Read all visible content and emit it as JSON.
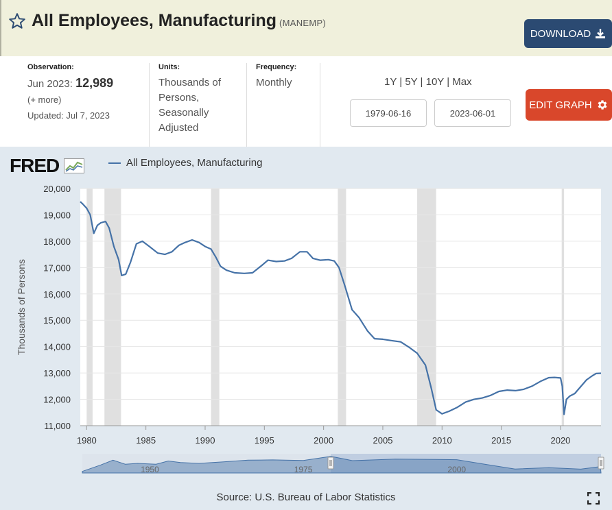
{
  "header": {
    "title": "All Employees, Manufacturing",
    "series_id": "(MANEMP)",
    "download_label": "DOWNLOAD"
  },
  "info": {
    "observation_label": "Observation:",
    "observation_date": "Jun 2023:",
    "observation_value": "12,989",
    "more": "(+ more)",
    "updated": "Updated: Jul 7, 2023",
    "units_label": "Units:",
    "units_lines": [
      "Thousands of",
      "Persons,",
      "Seasonally",
      "Adjusted"
    ],
    "frequency_label": "Frequency:",
    "frequency": "Monthly"
  },
  "controls": {
    "range_links": [
      "1Y",
      "5Y",
      "10Y",
      "Max"
    ],
    "start_date": "1979-06-16",
    "end_date": "2023-06-01",
    "edit_label": "EDIT GRAPH"
  },
  "chart_data": {
    "type": "line",
    "logo": "FRED",
    "ylabel": "Thousands of Persons",
    "ylim": [
      11000,
      20000
    ],
    "xlim": [
      1979.46,
      2023.42
    ],
    "yticks": [
      "20,000",
      "19,000",
      "18,000",
      "17,000",
      "16,000",
      "15,000",
      "14,000",
      "13,000",
      "12,000",
      "11,000"
    ],
    "ytick_values": [
      20000,
      19000,
      18000,
      17000,
      16000,
      15000,
      14000,
      13000,
      12000,
      11000
    ],
    "xticks": [
      "1980",
      "1985",
      "1990",
      "1995",
      "2000",
      "2005",
      "2010",
      "2015",
      "2020"
    ],
    "xtick_values": [
      1980,
      1985,
      1990,
      1995,
      2000,
      2005,
      2010,
      2015,
      2020
    ],
    "recessions": [
      [
        1980.0,
        1980.5
      ],
      [
        1981.5,
        1982.9
      ],
      [
        1990.5,
        1991.2
      ],
      [
        2001.2,
        2001.9
      ],
      [
        2007.9,
        2009.5
      ],
      [
        2020.1,
        2020.3
      ]
    ],
    "series": [
      {
        "name": "All Employees, Manufacturing",
        "color": "#4572a7",
        "x": [
          1979.46,
          1979.7,
          1980.0,
          1980.3,
          1980.6,
          1980.9,
          1981.2,
          1981.6,
          1981.9,
          1982.3,
          1982.7,
          1982.95,
          1983.3,
          1983.7,
          1984.2,
          1984.7,
          1985.3,
          1986.0,
          1986.6,
          1987.2,
          1987.8,
          1988.3,
          1988.9,
          1989.5,
          1990.0,
          1990.5,
          1990.9,
          1991.3,
          1991.8,
          1992.5,
          1993.3,
          1994.0,
          1994.7,
          1995.3,
          1996.0,
          1996.7,
          1997.3,
          1998.0,
          1998.6,
          1999.1,
          1999.7,
          2000.4,
          2000.9,
          2001.3,
          2001.8,
          2002.4,
          2003.0,
          2003.7,
          2004.3,
          2005.0,
          2005.7,
          2006.5,
          2007.2,
          2007.9,
          2008.6,
          2009.1,
          2009.5,
          2010.0,
          2010.6,
          2011.3,
          2012.0,
          2012.7,
          2013.4,
          2014.1,
          2014.8,
          2015.5,
          2016.2,
          2016.9,
          2017.6,
          2018.3,
          2019.0,
          2019.5,
          2020.0,
          2020.15,
          2020.3,
          2020.5,
          2020.8,
          2021.2,
          2021.7,
          2022.2,
          2022.7,
          2023.0,
          2023.42
        ],
        "values": [
          19500,
          19400,
          19250,
          19000,
          18300,
          18600,
          18700,
          18750,
          18500,
          17800,
          17300,
          16700,
          16750,
          17200,
          17900,
          18000,
          17800,
          17550,
          17500,
          17600,
          17850,
          17950,
          18050,
          17950,
          17800,
          17700,
          17400,
          17050,
          16900,
          16800,
          16780,
          16800,
          17050,
          17280,
          17230,
          17250,
          17350,
          17600,
          17600,
          17350,
          17280,
          17300,
          17250,
          17000,
          16300,
          15400,
          15100,
          14600,
          14300,
          14280,
          14230,
          14180,
          13980,
          13750,
          13300,
          12400,
          11600,
          11450,
          11550,
          11700,
          11900,
          12000,
          12050,
          12150,
          12300,
          12350,
          12330,
          12380,
          12500,
          12680,
          12820,
          12830,
          12810,
          12500,
          11430,
          12000,
          12130,
          12220,
          12480,
          12740,
          12900,
          12980,
          12989
        ]
      }
    ],
    "navigator_ticks": [
      "1950",
      "1975",
      "2000"
    ],
    "navigator_tick_values": [
      1950,
      1975,
      2000
    ],
    "navigator_range": [
      1939,
      2023.5
    ],
    "navigator_x": [
      1939,
      1942,
      1944,
      1946,
      1948,
      1951,
      1953,
      1955,
      1958,
      1962,
      1966,
      1970,
      1972,
      1975,
      1979.5,
      1983,
      1990,
      2000,
      2005,
      2009.5,
      2015,
      2020.2,
      2023.4
    ],
    "navigator_values": [
      10000,
      14000,
      17000,
      14500,
      15000,
      14500,
      16500,
      15500,
      15000,
      16000,
      17000,
      17200,
      17000,
      16800,
      19400,
      16700,
      17700,
      17300,
      14200,
      11500,
      12300,
      11400,
      12989
    ]
  },
  "source": "Source: U.S. Bureau of Labor Statistics"
}
